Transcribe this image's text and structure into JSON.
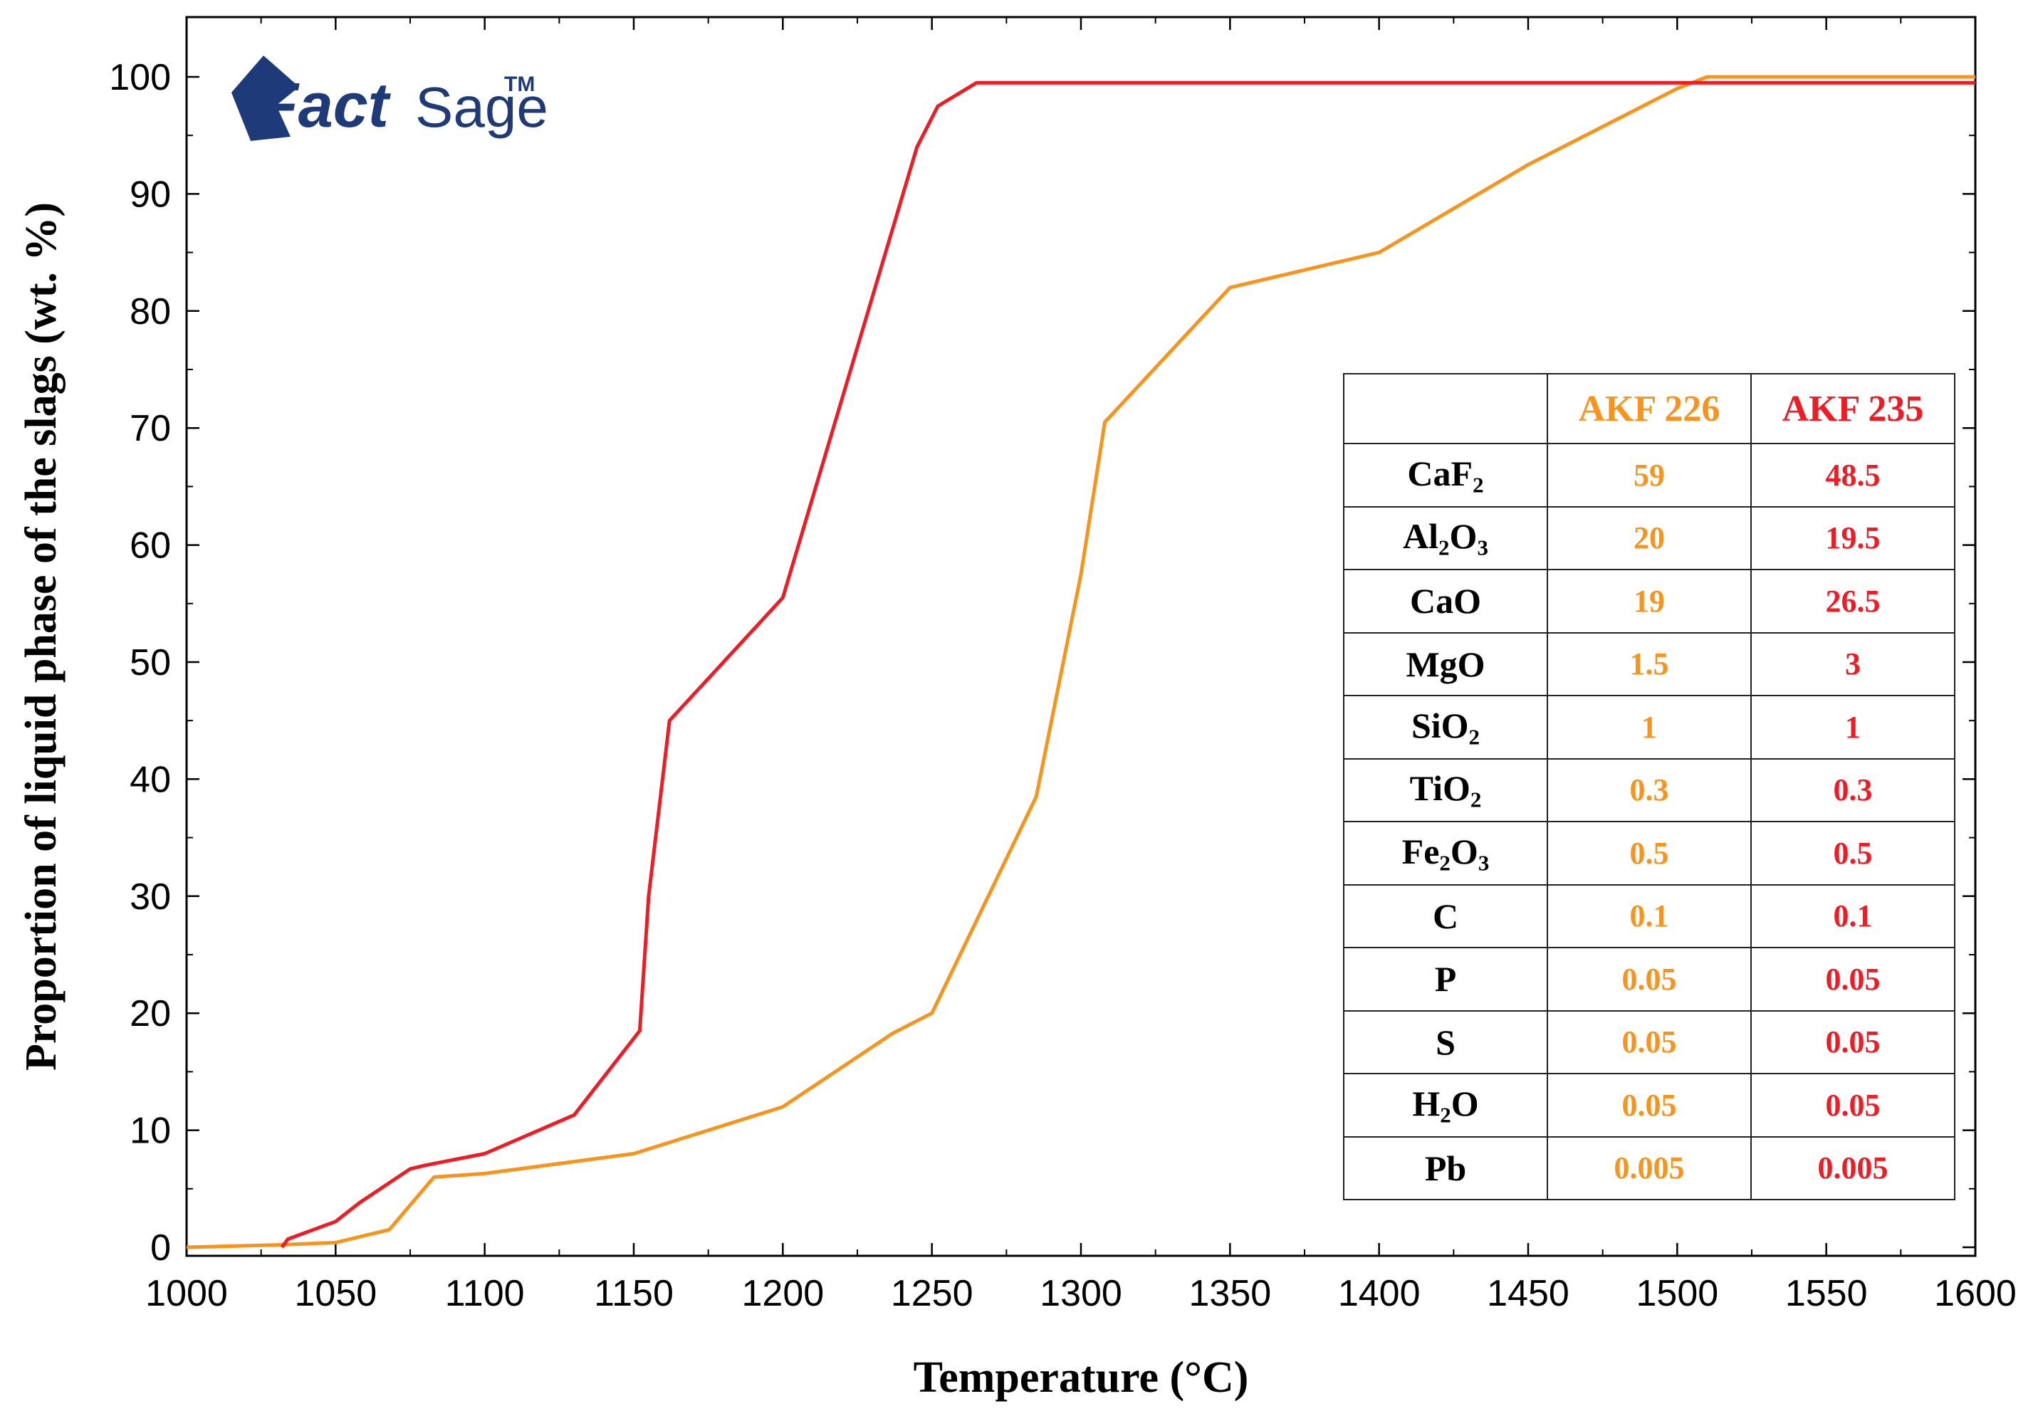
{
  "chart_data": {
    "type": "line",
    "title": "",
    "xlabel": "Temperature (°C)",
    "ylabel": "Proportion of liquid phase of the slags (wt. %)",
    "xlim": [
      1000,
      1600
    ],
    "ylim": [
      0,
      100
    ],
    "x_ticks": [
      1000,
      1050,
      1100,
      1150,
      1200,
      1250,
      1300,
      1350,
      1400,
      1450,
      1500,
      1550,
      1600
    ],
    "y_ticks": [
      0,
      10,
      20,
      30,
      40,
      50,
      60,
      70,
      80,
      90,
      100
    ],
    "grid": false,
    "series": [
      {
        "name": "AKF 226",
        "color": "#f7941d",
        "x": [
          1000,
          1030,
          1050,
          1068,
          1083,
          1100,
          1150,
          1200,
          1237,
          1250,
          1285,
          1300,
          1308,
          1350,
          1400,
          1450,
          1500,
          1510,
          1600
        ],
        "y": [
          0,
          0.2,
          0.4,
          1.5,
          6.0,
          6.3,
          8.0,
          12.0,
          18.3,
          20.0,
          38.5,
          57.5,
          70.5,
          82.0,
          85.0,
          92.5,
          99.0,
          100,
          100
        ]
      },
      {
        "name": "AKF 235",
        "color": "#ee1c24",
        "x": [
          1032,
          1034,
          1050,
          1058,
          1075,
          1080,
          1100,
          1130,
          1152,
          1155,
          1162,
          1200,
          1245,
          1252,
          1265,
          1600
        ],
        "y": [
          0,
          0.7,
          2.2,
          3.8,
          6.7,
          7.0,
          8.0,
          11.3,
          18.5,
          30.0,
          45.0,
          55.5,
          94.0,
          97.5,
          99.5,
          99.5
        ]
      }
    ]
  },
  "logo": {
    "text_fact": "Fact",
    "text_sage": "Sage",
    "tm": "TM",
    "color": "#1f3a78"
  },
  "composition_table": {
    "headers": [
      "",
      "AKF 226",
      "AKF 235"
    ],
    "rows": [
      {
        "component": "CaF",
        "sub": "2",
        "tail": "",
        "akf226": "59",
        "akf235": "48.5"
      },
      {
        "component": "Al",
        "sub": "2",
        "tail": "O",
        "tail_sub": "3",
        "akf226": "20",
        "akf235": "19.5"
      },
      {
        "component": "CaO",
        "sub": "",
        "tail": "",
        "akf226": "19",
        "akf235": "26.5"
      },
      {
        "component": "MgO",
        "sub": "",
        "tail": "",
        "akf226": "1.5",
        "akf235": "3"
      },
      {
        "component": "SiO",
        "sub": "2",
        "tail": "",
        "akf226": "1",
        "akf235": "1"
      },
      {
        "component": "TiO",
        "sub": "2",
        "tail": "",
        "akf226": "0.3",
        "akf235": "0.3"
      },
      {
        "component": "Fe",
        "sub": "2",
        "tail": "O",
        "tail_sub": "3",
        "akf226": "0.5",
        "akf235": "0.5"
      },
      {
        "component": "C",
        "sub": "",
        "tail": "",
        "akf226": "0.1",
        "akf235": "0.1"
      },
      {
        "component": "P",
        "sub": "",
        "tail": "",
        "akf226": "0.05",
        "akf235": "0.05"
      },
      {
        "component": "S",
        "sub": "",
        "tail": "",
        "akf226": "0.05",
        "akf235": "0.05"
      },
      {
        "component": "H",
        "sub": "2",
        "tail": "O",
        "tail_sub": "",
        "akf226": "0.05",
        "akf235": "0.05"
      },
      {
        "component": "Pb",
        "sub": "",
        "tail": "",
        "akf226": "0.005",
        "akf235": "0.005"
      }
    ]
  }
}
